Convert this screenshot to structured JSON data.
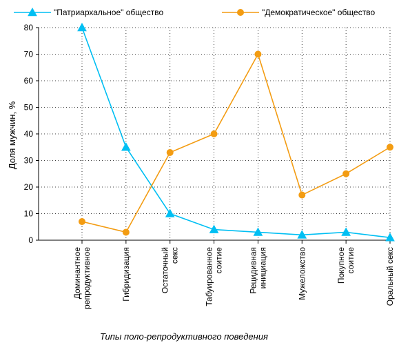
{
  "chart_data": {
    "type": "line",
    "categories": [
      [
        "Доминантное",
        "репродуктивное"
      ],
      [
        "Гибридизация"
      ],
      [
        "Остаточный",
        "секс"
      ],
      [
        "Табуированное",
        "соитие"
      ],
      [
        "Рецидивная",
        "инициация"
      ],
      [
        "Мужеложство"
      ],
      [
        "Покупное",
        "соитие"
      ],
      [
        "Оральный секс"
      ]
    ],
    "series": [
      {
        "name": "\"Патриархальное\" общество",
        "color": "#00bff3",
        "marker": "triangle",
        "values": [
          80,
          35,
          10,
          4,
          3,
          2,
          3,
          1
        ]
      },
      {
        "name": "\"Демократическое\" общество",
        "color": "#f39c12",
        "marker": "circle",
        "values": [
          7,
          3,
          33,
          40,
          70,
          17,
          25,
          35
        ]
      }
    ],
    "xlabel": "Типы поло-репродуктивного поведения",
    "ylabel": "Доля мужчин, %",
    "ylim": [
      0,
      80
    ],
    "yticks": [
      0,
      10,
      20,
      30,
      40,
      50,
      60,
      70,
      80
    ],
    "grid": true,
    "legend_position": "top"
  }
}
